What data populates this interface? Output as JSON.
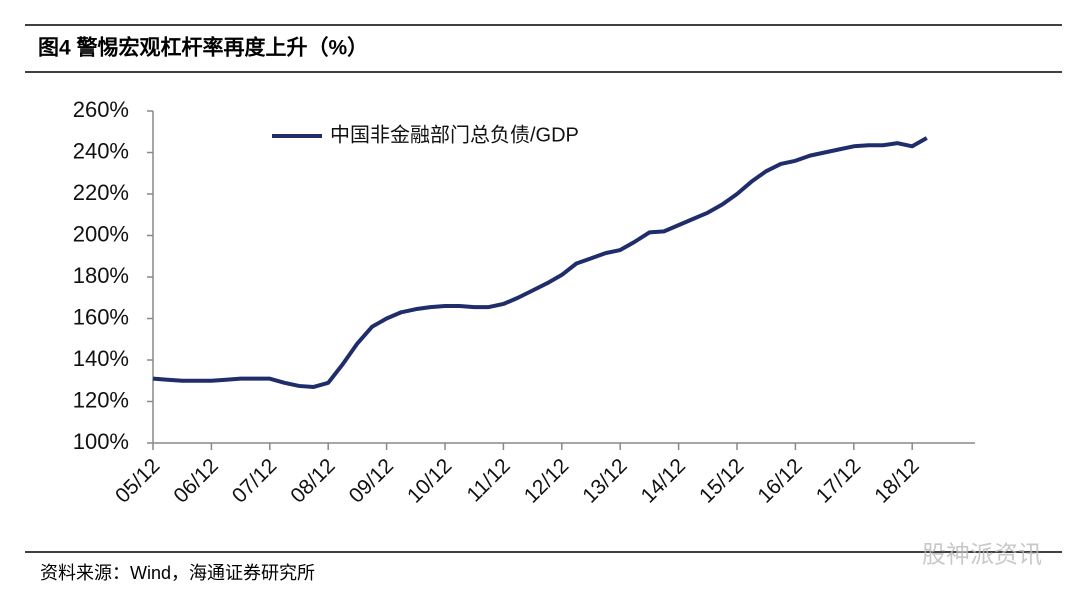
{
  "chart_data": {
    "type": "line",
    "title": "图4  警惕宏观杠杆率再度上升（%）",
    "source": "资料来源：Wind，海通证券研究所",
    "categories": [
      "05/12",
      null,
      null,
      null,
      "06/12",
      null,
      null,
      null,
      "07/12",
      null,
      null,
      null,
      "08/12",
      null,
      null,
      null,
      "09/12",
      null,
      null,
      null,
      "10/12",
      null,
      null,
      null,
      "11/12",
      null,
      null,
      null,
      "12/12",
      null,
      null,
      null,
      "13/12",
      null,
      null,
      null,
      "14/12",
      null,
      null,
      null,
      "15/12",
      null,
      null,
      null,
      "16/12",
      null,
      null,
      null,
      "17/12",
      null,
      null,
      null,
      "18/12",
      null
    ],
    "series": [
      {
        "name": "中国非金融部门总负债/GDP",
        "color": "#1f2d6b",
        "values": [
          131,
          130.5,
          130,
          130,
          130,
          130.5,
          131,
          131,
          131,
          129,
          127.5,
          127,
          129,
          138,
          148,
          156,
          160,
          163,
          164.5,
          165.5,
          166,
          166,
          165.5,
          165.5,
          167,
          170,
          173.5,
          177,
          181,
          186.5,
          189,
          191.5,
          193,
          197,
          201.5,
          202,
          205,
          208,
          211,
          215,
          220,
          226,
          231,
          234.5,
          236,
          238.5,
          240,
          241.5,
          243,
          243.5,
          243.5,
          244.5,
          243,
          247
        ]
      }
    ],
    "ylim": [
      100,
      260
    ],
    "yticks": [
      {
        "value": 100,
        "label": "100%"
      },
      {
        "value": 120,
        "label": "120%"
      },
      {
        "value": 140,
        "label": "140%"
      },
      {
        "value": 160,
        "label": "160%"
      },
      {
        "value": 180,
        "label": "180%"
      },
      {
        "value": 200,
        "label": "200%"
      },
      {
        "value": 220,
        "label": "220%"
      },
      {
        "value": 240,
        "label": "240%"
      },
      {
        "value": 260,
        "label": "260%"
      }
    ],
    "legend": "upper-left"
  },
  "watermark": "股神派资讯"
}
